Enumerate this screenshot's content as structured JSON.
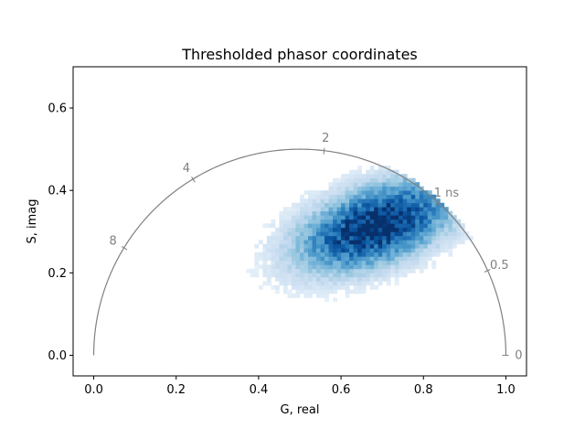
{
  "chart_data": {
    "type": "heatmap",
    "title": "Thresholded phasor coordinates",
    "xlabel": "G, real",
    "ylabel": "S, imag",
    "xlim": [
      -0.05,
      1.05
    ],
    "ylim": [
      -0.05,
      0.7
    ],
    "xticks": [
      "0.0",
      "0.2",
      "0.4",
      "0.6",
      "0.8",
      "1.0"
    ],
    "xtick_values": [
      0.0,
      0.2,
      0.4,
      0.6,
      0.8,
      1.0
    ],
    "yticks": [
      "0.0",
      "0.2",
      "0.4",
      "0.6"
    ],
    "ytick_values": [
      0.0,
      0.2,
      0.4,
      0.6
    ],
    "grid": false,
    "colormap": "Blues",
    "density": {
      "center_g": 0.68,
      "center_s": 0.31,
      "spread_g": 0.13,
      "spread_s": 0.06,
      "g_range": [
        0.3,
        0.95
      ],
      "s_range": [
        0.1,
        0.46
      ]
    },
    "universal_semicircle": {
      "center": [
        0.5,
        0.0
      ],
      "radius": 0.5,
      "color": "#808080"
    },
    "lifetime_ticks": [
      {
        "label": "0",
        "g": 1.0,
        "s": 0.0
      },
      {
        "label": "0.5",
        "g": 0.9559,
        "s": 0.2055
      },
      {
        "label": "1 ns",
        "g": 0.8351,
        "s": 0.3711
      },
      {
        "label": "2",
        "g": 0.5589,
        "s": 0.4965
      },
      {
        "label": "4",
        "g": 0.2408,
        "s": 0.4276
      },
      {
        "label": "8",
        "g": 0.0734,
        "s": 0.2607
      }
    ]
  }
}
